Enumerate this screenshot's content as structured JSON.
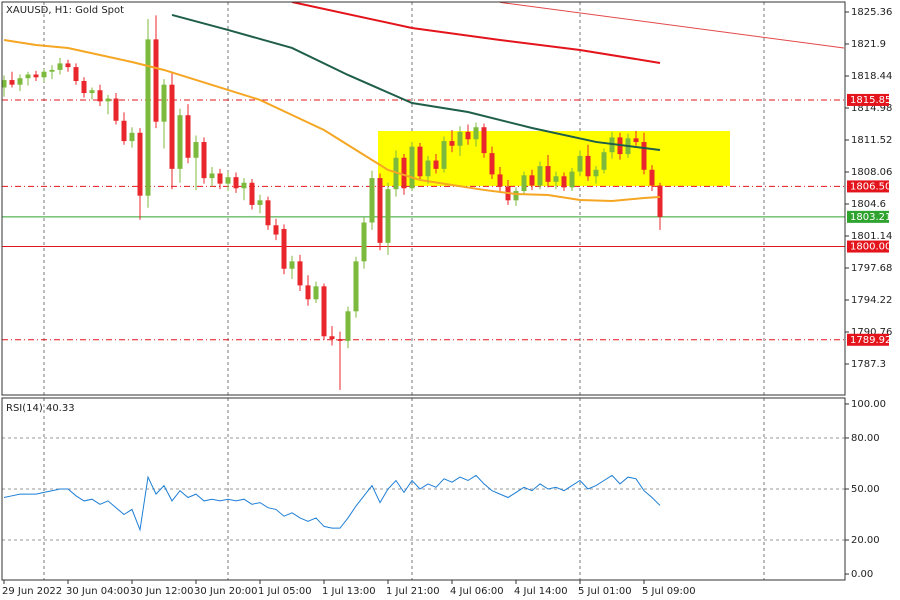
{
  "chart_data": [
    {
      "type": "candlestick",
      "title": "XAUUSD, H1:  Gold Spot",
      "categories": [
        "29 Jun 2022",
        null,
        null,
        null,
        null,
        null,
        null,
        null,
        "30 Jun 04:00",
        null,
        null,
        null,
        null,
        null,
        null,
        null,
        "30 Jun 12:00",
        null,
        null,
        null,
        null,
        null,
        null,
        null,
        "30 Jun 20:00",
        null,
        null,
        null,
        null,
        null,
        null,
        null,
        "1 Jul 05:00",
        null,
        null,
        null,
        null,
        null,
        null,
        null,
        "1 Jul 13:00",
        null,
        null,
        null,
        null,
        null,
        null,
        null,
        "1 Jul 21:00",
        null,
        null,
        null,
        null,
        null,
        null,
        null,
        "4 Jul 06:00",
        null,
        null,
        null,
        null,
        null,
        null,
        null,
        "4 Jul 14:00",
        null,
        null,
        null,
        null,
        null,
        null,
        null,
        "5 Jul 01:00",
        null,
        null,
        null,
        null,
        null,
        null,
        null,
        "5 Jul 09:00",
        null,
        null
      ],
      "open": [
        1817.2,
        1818.0,
        1817.5,
        1818.2,
        1818.6,
        1818.3,
        1818.9,
        1819.1,
        1819.8,
        1819.4,
        1817.9,
        1816.6,
        1816.9,
        1815.7,
        1816.0,
        1813.6,
        1811.4,
        1812.3,
        1805.5,
        1822.4,
        1813.5,
        1817.5,
        1808.4,
        1814.2,
        1809.6,
        1811.3,
        1807.4,
        1807.9,
        1806.8,
        1807.5,
        1806.3,
        1806.9,
        1804.5,
        1805.0,
        1802.3,
        1801.9,
        1797.6,
        1798.4,
        1795.8,
        1794.3,
        1795.7,
        1790.3,
        1790.0,
        1789.8,
        1793.0,
        1798.4,
        1802.6,
        1807.4,
        1800.4,
        1806.2,
        1809.6,
        1806.3,
        1810.8,
        1807.6,
        1809.3,
        1808.4,
        1811.4,
        1810.9,
        1812.4,
        1811.6,
        1812.9,
        1810.1,
        1807.8,
        1806.5,
        1805.0,
        1806.0,
        1807.7,
        1806.6,
        1808.7,
        1807.0,
        1807.6,
        1806.4,
        1808.1,
        1809.8,
        1807.6,
        1808.3,
        1810.2,
        1811.8,
        1810.0,
        1811.7,
        1811.3,
        1808.3,
        1806.6
      ],
      "high": [
        1818.5,
        1818.9,
        1818.6,
        1818.9,
        1819.0,
        1819.2,
        1819.6,
        1820.4,
        1820.2,
        1819.8,
        1818.3,
        1817.2,
        1817.5,
        1816.4,
        1816.6,
        1814.5,
        1812.9,
        1812.8,
        1824.6,
        1825.0,
        1818.1,
        1818.9,
        1814.9,
        1815.4,
        1812.0,
        1811.8,
        1808.6,
        1808.4,
        1808.1,
        1808.0,
        1807.4,
        1807.3,
        1805.6,
        1805.4,
        1803.0,
        1802.4,
        1799.0,
        1799.1,
        1796.9,
        1796.2,
        1796.0,
        1791.4,
        1790.8,
        1793.5,
        1798.9,
        1803.2,
        1808.2,
        1807.9,
        1806.9,
        1810.4,
        1810.0,
        1811.3,
        1811.2,
        1809.8,
        1810.0,
        1811.9,
        1812.6,
        1813.0,
        1813.2,
        1813.4,
        1813.3,
        1810.8,
        1808.6,
        1807.2,
        1806.4,
        1808.1,
        1808.3,
        1809.2,
        1809.9,
        1808.1,
        1808.0,
        1808.5,
        1810.4,
        1811.0,
        1808.7,
        1810.6,
        1812.4,
        1812.3,
        1812.2,
        1812.5,
        1812.3,
        1808.8,
        1806.9
      ],
      "low": [
        1816.2,
        1817.2,
        1816.8,
        1817.4,
        1817.9,
        1817.8,
        1818.1,
        1818.6,
        1818.9,
        1817.5,
        1816.1,
        1815.9,
        1815.2,
        1814.3,
        1813.2,
        1811.0,
        1810.7,
        1802.9,
        1804.2,
        1812.8,
        1810.6,
        1806.2,
        1806.9,
        1809.0,
        1806.1,
        1806.8,
        1806.5,
        1806.2,
        1806.0,
        1805.8,
        1805.0,
        1804.0,
        1803.6,
        1801.8,
        1800.7,
        1797.0,
        1796.5,
        1795.2,
        1793.6,
        1793.9,
        1789.9,
        1789.3,
        1784.5,
        1789.0,
        1792.3,
        1797.6,
        1801.8,
        1799.6,
        1799.1,
        1805.4,
        1805.6,
        1806.0,
        1807.1,
        1806.8,
        1807.9,
        1808.0,
        1810.2,
        1809.8,
        1811.0,
        1810.8,
        1809.6,
        1807.3,
        1805.9,
        1804.5,
        1804.4,
        1805.6,
        1806.1,
        1806.2,
        1806.4,
        1806.2,
        1806.0,
        1806.0,
        1807.6,
        1807.1,
        1806.8,
        1807.9,
        1809.5,
        1809.4,
        1809.6,
        1810.9,
        1807.8,
        1806.0,
        1801.8
      ],
      "close": [
        1818.0,
        1817.5,
        1818.2,
        1818.6,
        1818.3,
        1818.9,
        1819.1,
        1819.8,
        1819.4,
        1817.9,
        1816.6,
        1816.9,
        1815.7,
        1816.0,
        1813.6,
        1811.4,
        1812.3,
        1805.5,
        1822.4,
        1813.5,
        1817.5,
        1808.4,
        1814.2,
        1809.6,
        1811.3,
        1807.4,
        1807.9,
        1806.8,
        1807.5,
        1806.3,
        1806.9,
        1804.5,
        1805.0,
        1802.3,
        1801.3,
        1797.6,
        1798.4,
        1795.8,
        1794.3,
        1795.7,
        1790.3,
        1790.0,
        1789.8,
        1793.0,
        1798.4,
        1802.6,
        1807.4,
        1800.4,
        1806.2,
        1809.6,
        1806.3,
        1810.8,
        1807.6,
        1809.3,
        1808.4,
        1811.4,
        1810.9,
        1812.4,
        1811.6,
        1812.9,
        1810.1,
        1807.8,
        1806.5,
        1805.0,
        1806.0,
        1807.7,
        1806.6,
        1808.7,
        1807.0,
        1807.6,
        1806.4,
        1808.1,
        1809.8,
        1807.6,
        1808.3,
        1810.2,
        1811.8,
        1810.0,
        1811.7,
        1811.3,
        1808.3,
        1806.6,
        1803.21
      ],
      "up_color": "#7cba3d",
      "down_color": "#e8262b",
      "ylim": [
        1783.95,
        1826.44
      ],
      "yticks": [
        1825.36,
        1821.9,
        1818.44,
        1814.98,
        1811.52,
        1808.06,
        1804.6,
        1801.14,
        1797.68,
        1794.22,
        1790.76,
        1787.3
      ],
      "xgrid": [
        5,
        28,
        51,
        72,
        95
      ],
      "overlays": [
        {
          "color": "#f5a623",
          "x": [
            0,
            4,
            8,
            12,
            16,
            20,
            24,
            28,
            32,
            36,
            40,
            44,
            48,
            52,
            56,
            60,
            64,
            68,
            72,
            76,
            80,
            82
          ],
          "values": [
            1822.33,
            1821.79,
            1821.47,
            1820.71,
            1819.95,
            1819.09,
            1818.01,
            1816.93,
            1815.85,
            1814.22,
            1812.6,
            1810.44,
            1808.28,
            1807.2,
            1806.66,
            1806.12,
            1805.68,
            1805.57,
            1805.03,
            1804.92,
            1805.25,
            1805.36
          ]
        },
        {
          "color": "#1e5e4a",
          "x": [
            21,
            28,
            36,
            43,
            51,
            58,
            66,
            74,
            82
          ],
          "values": [
            1825.04,
            1823.42,
            1821.47,
            1818.55,
            1815.52,
            1814.55,
            1812.82,
            1811.31,
            1810.44
          ]
        },
        {
          "color": "#e3141b",
          "x": [
            36,
            51,
            62,
            72,
            82
          ],
          "values": [
            1826.44,
            1823.63,
            1822.33,
            1821.25,
            1819.85
          ]
        },
        {
          "color": "#e34848",
          "x": [
            62,
            105
          ],
          "values": [
            1826.4,
            1821.47
          ]
        }
      ],
      "rectangle": {
        "x": [
          46.75,
          90.75
        ],
        "y": [
          1806.55,
          1812.49
        ],
        "color": "#ffff00"
      },
      "levels": [
        {
          "value": 1815.85,
          "color": "#e3141b",
          "style": "dashdot"
        },
        {
          "value": 1806.5,
          "label": "1806.50",
          "color": "#e3141b",
          "style": "dashdot"
        },
        {
          "value": 1803.21,
          "color": "#2ea32e",
          "style": "solid"
        },
        {
          "value": 1800,
          "label": "1800.00",
          "color": "#e3141b",
          "style": "solid"
        },
        {
          "value": 1789.92,
          "color": "#e3141b",
          "style": "dashdot"
        }
      ]
    },
    {
      "type": "line",
      "title": "RSI(14) 40.33",
      "color": "#1e7fd6",
      "values": [
        45,
        46,
        47,
        47,
        47,
        48,
        49,
        50,
        50,
        46,
        43,
        44,
        41,
        43,
        39,
        35,
        38,
        26,
        57,
        47,
        52,
        43,
        49,
        45,
        47,
        43,
        44,
        43,
        44,
        43,
        44,
        41,
        42,
        39,
        38,
        34,
        36,
        33,
        31,
        33,
        28,
        27,
        27,
        33,
        40,
        46,
        52,
        42,
        50,
        55,
        48,
        55,
        50,
        53,
        51,
        56,
        54,
        57,
        55,
        58,
        53,
        49,
        47,
        45,
        48,
        51,
        49,
        53,
        50,
        51,
        49,
        52,
        55,
        50,
        52,
        55,
        58,
        53,
        57,
        56,
        49,
        45,
        40.33
      ],
      "ylim": [
        -3.5,
        103.5
      ],
      "yticks": [
        {
          "value": 100,
          "label": "100.00"
        },
        {
          "value": 80,
          "label": "80.00"
        },
        {
          "value": 50,
          "label": "50.00"
        },
        {
          "value": 20,
          "label": "20.00"
        },
        {
          "value": 0,
          "label": "0.00"
        }
      ],
      "levels": [
        80,
        50,
        20
      ]
    }
  ]
}
